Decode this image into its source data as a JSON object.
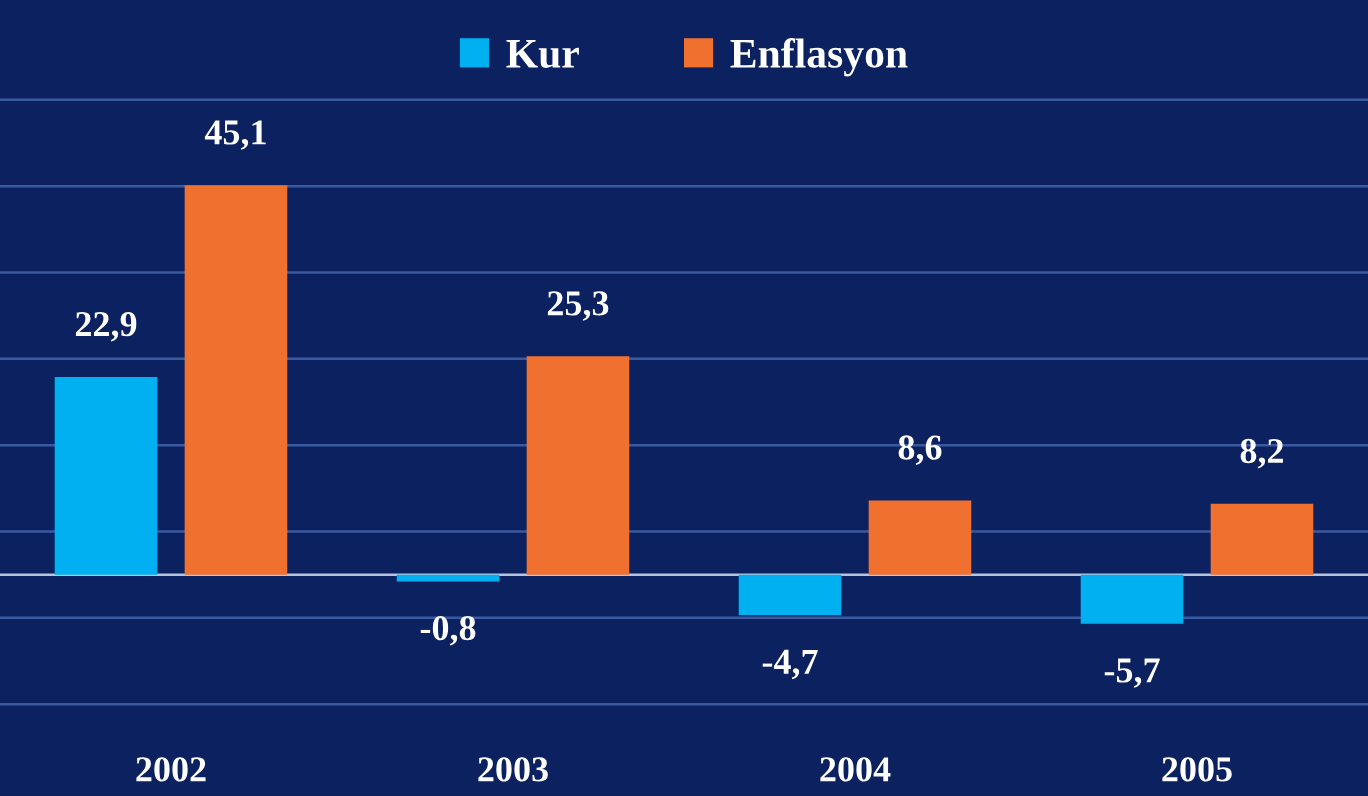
{
  "chart_data": {
    "type": "bar",
    "categories": [
      "2002",
      "2003",
      "2004",
      "2005"
    ],
    "series": [
      {
        "name": "Kur",
        "color": "#00b0f0",
        "values": [
          22.9,
          -0.8,
          -4.7,
          -5.7
        ],
        "value_labels": [
          "22,9",
          "-0,8",
          "-4,7",
          "-5,7"
        ]
      },
      {
        "name": "Enflasyon",
        "color": "#f07030",
        "values": [
          45.1,
          25.3,
          8.6,
          8.2
        ],
        "value_labels": [
          "45,1",
          "25,3",
          "8,6",
          "8,2"
        ]
      }
    ],
    "ref_lines": [
      {
        "axis": "y",
        "value": -15,
        "color": "#3a5aa0"
      },
      {
        "axis": "y",
        "value": -5,
        "color": "#3a5aa0"
      },
      {
        "axis": "y",
        "value": 0,
        "color": "#b8c4dc"
      },
      {
        "axis": "y",
        "value": 5,
        "color": "#3a5aa0"
      },
      {
        "axis": "y",
        "value": 15,
        "color": "#3a5aa0"
      },
      {
        "axis": "y",
        "value": 25,
        "color": "#3a5aa0"
      },
      {
        "axis": "y",
        "value": 35,
        "color": "#3a5aa0"
      },
      {
        "axis": "y",
        "value": 45,
        "color": "#3a5aa0"
      },
      {
        "axis": "y",
        "value": 55,
        "color": "#3a5aa0"
      }
    ],
    "tick_labels": "x",
    "legend": "top"
  }
}
